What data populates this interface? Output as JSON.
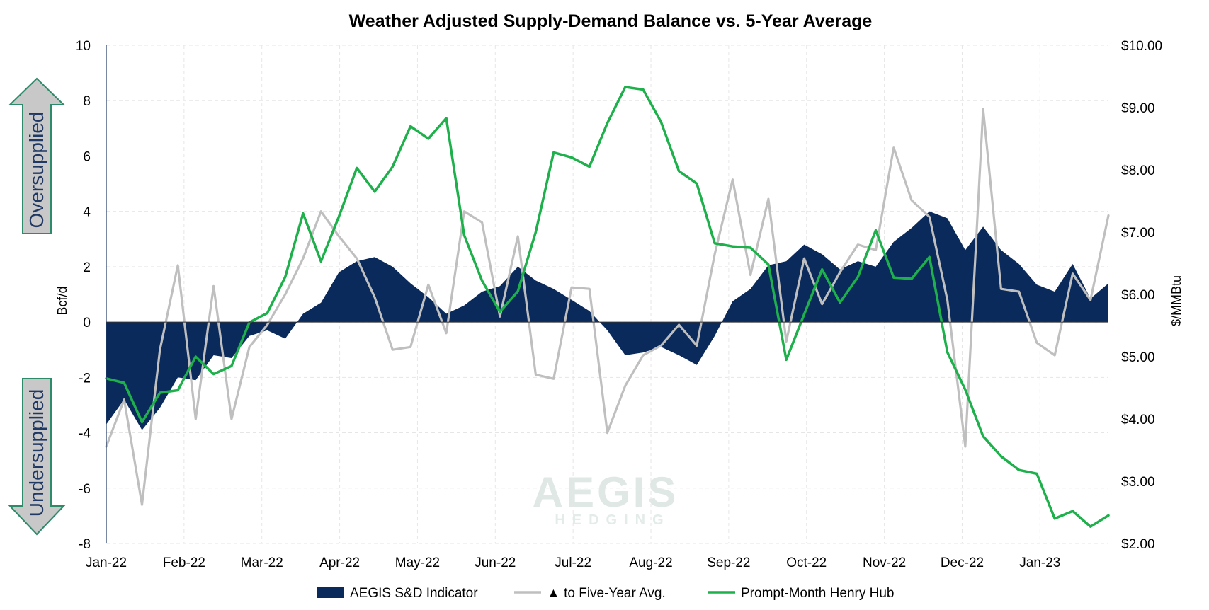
{
  "chart_data": {
    "type": "line",
    "title": "Weather Adjusted Supply-Demand Balance vs. 5-Year Average",
    "y_left_label": "Bcf/d",
    "y_right_label": "$/MMBtu",
    "y_left_range": [
      -8,
      10
    ],
    "y_left_ticks": [
      "10",
      "8",
      "6",
      "4",
      "2",
      "0",
      "-2",
      "-4",
      "-6",
      "-8"
    ],
    "y_right_range": [
      2.0,
      10.0
    ],
    "y_right_ticks": [
      "$10.00",
      "$9.00",
      "$8.00",
      "$7.00",
      "$6.00",
      "$5.00",
      "$4.00",
      "$3.00",
      "$2.00"
    ],
    "x_tick_labels": [
      "Jan-22",
      "Feb-22",
      "Mar-22",
      "Apr-22",
      "May-22",
      "Jun-22",
      "Jul-22",
      "Aug-22",
      "Sep-22",
      "Oct-22",
      "Nov-22",
      "Dec-22",
      "Jan-23"
    ],
    "grid": true,
    "legend_position": "bottom",
    "series": [
      {
        "name": "AEGIS S&D Indicator",
        "kind": "area",
        "axis": "left",
        "color": "#0a2a5c",
        "values": [
          -3.7,
          -2.8,
          -3.9,
          -3.1,
          -2.0,
          -2.1,
          -1.2,
          -1.3,
          -0.5,
          -0.3,
          -0.6,
          0.3,
          0.7,
          1.8,
          2.2,
          2.35,
          2.0,
          1.4,
          0.9,
          0.3,
          0.6,
          1.1,
          1.3,
          2.0,
          1.5,
          1.2,
          0.8,
          0.4,
          -0.3,
          -1.2,
          -1.1,
          -0.9,
          -1.2,
          -1.55,
          -0.5,
          0.75,
          1.2,
          2.05,
          2.2,
          2.8,
          2.45,
          1.9,
          2.2,
          2.0,
          2.9,
          3.4,
          4.0,
          3.75,
          2.6,
          3.45,
          2.6,
          2.1,
          1.35,
          1.1,
          2.1,
          0.85,
          1.4
        ]
      },
      {
        "name": "▲ to Five-Year Avg.",
        "kind": "line",
        "axis": "left",
        "color": "#bfbfbf",
        "values": [
          -4.5,
          -2.8,
          -6.6,
          -1.0,
          2.05,
          -3.5,
          1.3,
          -3.5,
          -0.9,
          -0.1,
          1.0,
          2.3,
          4.0,
          3.1,
          2.3,
          0.9,
          -1.0,
          -0.9,
          1.35,
          -0.4,
          4.0,
          3.6,
          0.2,
          3.1,
          -1.9,
          -2.05,
          1.25,
          1.2,
          -4.0,
          -2.3,
          -1.2,
          -0.85,
          -0.1,
          -0.85,
          2.45,
          5.15,
          1.7,
          4.45,
          -0.7,
          2.3,
          0.65,
          1.8,
          2.8,
          2.6,
          6.3,
          4.4,
          3.8,
          0.8,
          -4.5,
          7.7,
          1.2,
          1.1,
          -0.75,
          -1.2,
          1.75,
          0.8,
          3.85
        ]
      },
      {
        "name": "Prompt-Month Henry Hub",
        "kind": "line",
        "axis": "right",
        "color": "#1db04b",
        "values": [
          4.65,
          4.58,
          3.95,
          4.42,
          4.46,
          5.0,
          4.72,
          4.85,
          5.55,
          5.7,
          6.28,
          7.3,
          6.53,
          7.25,
          8.03,
          7.65,
          8.05,
          8.7,
          8.5,
          8.83,
          6.95,
          6.22,
          5.72,
          6.05,
          7.0,
          8.28,
          8.2,
          8.05,
          8.75,
          9.33,
          9.29,
          8.77,
          7.98,
          7.78,
          6.82,
          6.77,
          6.75,
          6.48,
          4.95,
          5.68,
          6.4,
          5.87,
          6.28,
          7.03,
          6.27,
          6.25,
          6.6,
          5.07,
          4.47,
          3.72,
          3.4,
          3.18,
          3.12,
          2.4,
          2.52,
          2.27,
          2.45
        ]
      }
    ]
  },
  "annotations": {
    "oversupplied": "Oversupplied",
    "undersupplied": "Undersupplied",
    "watermark_main": "AEGIS",
    "watermark_sub": "HEDGING"
  },
  "colors": {
    "arrow_fill": "#c8c8c8",
    "arrow_stroke": "#2e8b6a",
    "side_text": "#1f3864",
    "grid": "#e6e6e6"
  }
}
